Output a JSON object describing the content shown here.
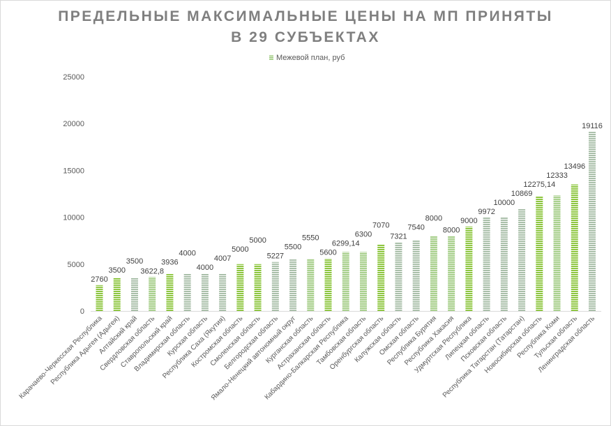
{
  "chart_data": {
    "type": "bar",
    "title_lines": [
      "ПРЕДЕЛЬНЫЕ МАКСИМАЛЬНЫЕ ЦЕНЫ НА МП ПРИНЯТЫ",
      "В 29 СУБЪЕКТАХ"
    ],
    "legend": [
      "Межевой план, руб"
    ],
    "legend_position": "top",
    "ylim": [
      0,
      25000
    ],
    "yticks": [
      "0",
      "5000",
      "10000",
      "15000",
      "20000",
      "25000"
    ],
    "ytick_values": [
      0,
      5000,
      10000,
      15000,
      20000,
      25000
    ],
    "grid": false,
    "categories": [
      "Карачаево-Черкесская Республика",
      "Республика Адыгея (Адыгея)",
      "Алтайский край",
      "Свердловская область",
      "Ставропольский край",
      "Владимирская область",
      "Курская область",
      "Республика Саха (Якутия)",
      "Костромская область",
      "Смоленская область",
      "Белгородская область",
      "Ямало-Ненецкий автономный округ",
      "Курганская область",
      "Астраханская область",
      "Кабардино-Балкарская Республика",
      "Тамбовская область",
      "Оренбургская область",
      "Калужская область",
      "Омская область",
      "Республика Бурятия",
      "Республика Хакасия",
      "Удмуртская Республика",
      "Липецкая область",
      "Псковская область",
      "Республика Татарстан (Татарстан)",
      "Новосибирская область",
      "Республика Коми",
      "Тульская область",
      "Ленинградская область"
    ],
    "series": [
      {
        "name": "Межевой план, руб",
        "values": [
          2760,
          3500,
          3500,
          3622.8,
          3936,
          4000,
          4000,
          4007,
          5000,
          5000,
          5227,
          5500,
          5550,
          5600,
          6299.14,
          6300,
          7070,
          7321,
          7540,
          8000,
          8000,
          9000,
          9972,
          10000,
          10869,
          12275.14,
          12333,
          13496,
          19116
        ],
        "labels": [
          "2760",
          "3500",
          "3500",
          "3622,8",
          "3936",
          "4000",
          "4000",
          "4007",
          "5000",
          "5000",
          "5227",
          "5500",
          "5550",
          "5600",
          "6299,14",
          "6300",
          "7070",
          "7321",
          "7540",
          "8000",
          "8000",
          "9000",
          "9972",
          "10000",
          "10869",
          "12275,14",
          "12333",
          "13496",
          "19116"
        ]
      }
    ],
    "colors": {
      "green": "#8dc63f",
      "grey_green": "#a9bfa9",
      "pale_green": "#a9d18e",
      "text": "#595959",
      "title": "#7f7f7f"
    }
  }
}
